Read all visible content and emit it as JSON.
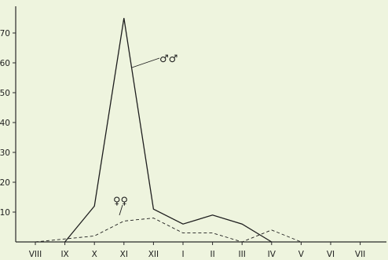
{
  "chart_data": {
    "type": "line",
    "title": "",
    "xlabel": "",
    "ylabel": "",
    "categories": [
      "VIII",
      "IX",
      "X",
      "XI",
      "XII",
      "I",
      "II",
      "III",
      "IV",
      "V",
      "VI",
      "VII"
    ],
    "yticks": [
      10,
      20,
      30,
      40,
      50,
      60,
      70
    ],
    "ylim": [
      0,
      76
    ],
    "grid": false,
    "series": [
      {
        "name": "♂♂",
        "style": "solid",
        "color": "#1e1e1e",
        "values": [
          null,
          0,
          12,
          75,
          11,
          6,
          9,
          6,
          0,
          null,
          null,
          null
        ]
      },
      {
        "name": "♀♀",
        "style": "dashed",
        "color": "#1e1e1e",
        "values": [
          0,
          1,
          2,
          7,
          8,
          3,
          3,
          0,
          4,
          0,
          null,
          null
        ]
      }
    ]
  }
}
